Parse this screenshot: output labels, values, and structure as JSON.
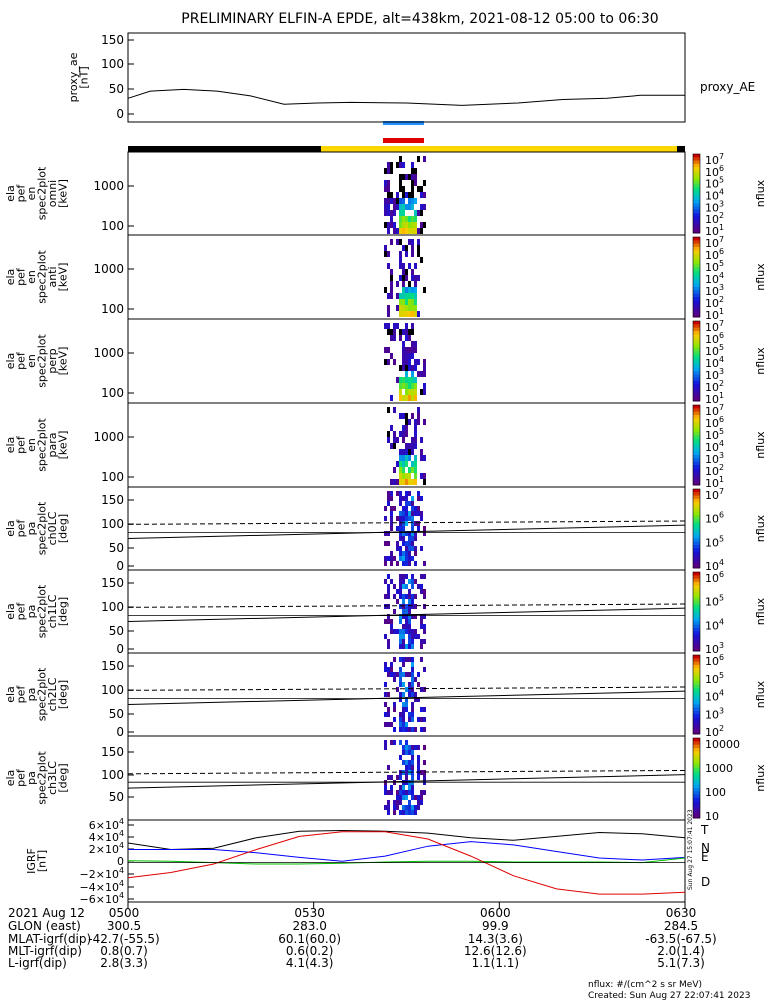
{
  "title": "PRELIMINARY ELFIN-A EPDE, alt=438km, 2021-08-12 05:00 to 06:30",
  "colors": {
    "blue_bar": "#1e90ff",
    "red_bar": "#e00000",
    "black_bar": "#000000",
    "yellow_bar": "#ffd700",
    "T": "#000000",
    "N": "#0000ff",
    "E": "#00c000",
    "D": "#e00000"
  },
  "chart_data": {
    "type": "heatmap",
    "title": "PRELIMINARY ELFIN-A EPDE, alt=438km, 2021-08-12 05:00 to 06:30",
    "time_range": [
      "05:00",
      "06:30"
    ],
    "panels": [
      {
        "id": "proxy_ae",
        "ylabel": [
          "proxy_ae",
          "[nT]"
        ],
        "yticks": [
          "150",
          "100",
          "50",
          "0"
        ],
        "ylim": [
          0,
          150
        ],
        "legend": "proxy_AE",
        "series": [
          {
            "name": "proxy_AE",
            "x": [
              0,
              0.04,
              0.1,
              0.16,
              0.22,
              0.28,
              0.34,
              0.4,
              0.5,
              0.6,
              0.7,
              0.78,
              0.86,
              0.92,
              1.0
            ],
            "values": [
              40,
              52,
              55,
              52,
              44,
              30,
              32,
              33,
              32,
              28,
              32,
              38,
              40,
              45,
              45
            ]
          }
        ]
      },
      {
        "id": "en_omni",
        "ylabel": [
          "ela",
          "pef",
          "en",
          "spec2plot",
          "omni",
          "[keV]"
        ],
        "yticks": [
          "1000",
          "100"
        ],
        "ylim": [
          60,
          7000
        ],
        "scale": "log",
        "colorbar": {
          "label": "nflux",
          "ticks": [
            "10^7",
            "10^6",
            "10^5",
            "10^4",
            "10^3",
            "10^2",
            "10^1"
          ]
        }
      },
      {
        "id": "en_anti",
        "ylabel": [
          "ela",
          "pef",
          "en",
          "spec2plot",
          "anti",
          "[keV]"
        ],
        "yticks": [
          "1000",
          "100"
        ],
        "ylim": [
          60,
          7000
        ],
        "scale": "log",
        "colorbar": {
          "label": "nflux",
          "ticks": [
            "10^7",
            "10^6",
            "10^5",
            "10^4",
            "10^3",
            "10^2",
            "10^1"
          ]
        }
      },
      {
        "id": "en_perp",
        "ylabel": [
          "ela",
          "pef",
          "en",
          "spec2plot",
          "perp",
          "[keV]"
        ],
        "yticks": [
          "1000",
          "100"
        ],
        "ylim": [
          60,
          7000
        ],
        "scale": "log",
        "colorbar": {
          "label": "nflux",
          "ticks": [
            "10^7",
            "10^6",
            "10^5",
            "10^4",
            "10^3",
            "10^2",
            "10^1"
          ]
        }
      },
      {
        "id": "en_para",
        "ylabel": [
          "ela",
          "pef",
          "en",
          "spec2plot",
          "para",
          "[keV]"
        ],
        "yticks": [
          "1000",
          "100"
        ],
        "ylim": [
          60,
          7000
        ],
        "scale": "log",
        "colorbar": {
          "label": "nflux",
          "ticks": [
            "10^7",
            "10^6",
            "10^5",
            "10^4",
            "10^3",
            "10^2",
            "10^1"
          ]
        }
      },
      {
        "id": "pa_ch0",
        "ylabel": [
          "ela",
          "pef",
          "pa",
          "spec2plot",
          "ch0LC",
          "[deg]"
        ],
        "yticks": [
          "150",
          "100",
          "50",
          "0"
        ],
        "ylim": [
          0,
          180
        ],
        "colorbar": {
          "label": "nflux",
          "ticks": [
            "10^7",
            "10^6",
            "10^5",
            "10^4"
          ]
        }
      },
      {
        "id": "pa_ch1",
        "ylabel": [
          "ela",
          "pef",
          "pa",
          "spec2plot",
          "ch1LC",
          "[deg]"
        ],
        "yticks": [
          "150",
          "100",
          "50",
          "0"
        ],
        "ylim": [
          0,
          180
        ],
        "colorbar": {
          "label": "nflux",
          "ticks": [
            "10^6",
            "10^5",
            "10^4",
            "10^3"
          ]
        }
      },
      {
        "id": "pa_ch2",
        "ylabel": [
          "ela",
          "pef",
          "pa",
          "spec2plot",
          "ch2LC",
          "[deg]"
        ],
        "yticks": [
          "150",
          "100",
          "50",
          "0"
        ],
        "ylim": [
          0,
          180
        ],
        "colorbar": {
          "label": "nflux",
          "ticks": [
            "10^6",
            "10^5",
            "10^4",
            "10^3",
            "10^2"
          ]
        }
      },
      {
        "id": "pa_ch3",
        "ylabel": [
          "ela",
          "pef",
          "pa",
          "spec2plot",
          "ch3LC",
          "[deg]"
        ],
        "yticks": [
          "150",
          "100",
          "50"
        ],
        "ylim": [
          20,
          180
        ],
        "colorbar": {
          "label": "nflux",
          "ticks": [
            "10000",
            "1000",
            "100",
            "10"
          ]
        }
      },
      {
        "id": "igrf",
        "ylabel": [
          "IGRF",
          "[nT]"
        ],
        "yticks": [
          "6×10^4",
          "4×10^4",
          "2×10^4",
          "0",
          "−2×10^4",
          "−4×10^4",
          "−6×10^4"
        ],
        "ylim": [
          -60000,
          65000
        ],
        "series": [
          {
            "name": "T",
            "values": [
              30000,
              20000,
              22000,
              38000,
              48000,
              49000,
              48000,
              45000,
              38000,
              34000,
              40000,
              46000,
              44000,
              38000
            ]
          },
          {
            "name": "N",
            "values": [
              20000,
              20000,
              20000,
              15000,
              8000,
              2000,
              10000,
              25000,
              32000,
              27000,
              17000,
              7000,
              4000,
              8000
            ]
          },
          {
            "name": "E",
            "values": [
              3000,
              2000,
              0,
              -2000,
              -2000,
              -1000,
              1000,
              2000,
              2000,
              1000,
              1000,
              1000,
              0,
              7000
            ]
          },
          {
            "name": "D",
            "values": [
              -23000,
              -15000,
              -2000,
              20000,
              40000,
              47000,
              47000,
              36000,
              10000,
              -20000,
              -40000,
              -48000,
              -48000,
              -45000
            ]
          }
        ]
      }
    ],
    "x_axis": {
      "header": [
        "2021 Aug 12",
        "GLON (east)",
        "MLAT-igrf(dip)",
        "MLT-igrf(dip)",
        "L-igrf(dip)"
      ],
      "columns": [
        [
          "0500",
          "300.5",
          "-42.7(-55.5)",
          "0.8(0.7)",
          "2.8(3.3)"
        ],
        [
          "0530",
          "283.0",
          "60.1(60.0)",
          "0.6(0.2)",
          "4.1(4.3)"
        ],
        [
          "0600",
          "99.9",
          "14.3(3.6)",
          "12.6(12.6)",
          "1.1(1.1)"
        ],
        [
          "0630",
          "284.5",
          "-63.5(-67.5)",
          "2.0(1.4)",
          "5.1(7.3)"
        ]
      ]
    }
  },
  "footer": {
    "units": "nflux: #/(cm^2 s sr MeV)",
    "created": "Created: Sun Aug 27 22:07:41 2023",
    "side_stamp": "Sun Aug 27 15:07:41 2023"
  }
}
